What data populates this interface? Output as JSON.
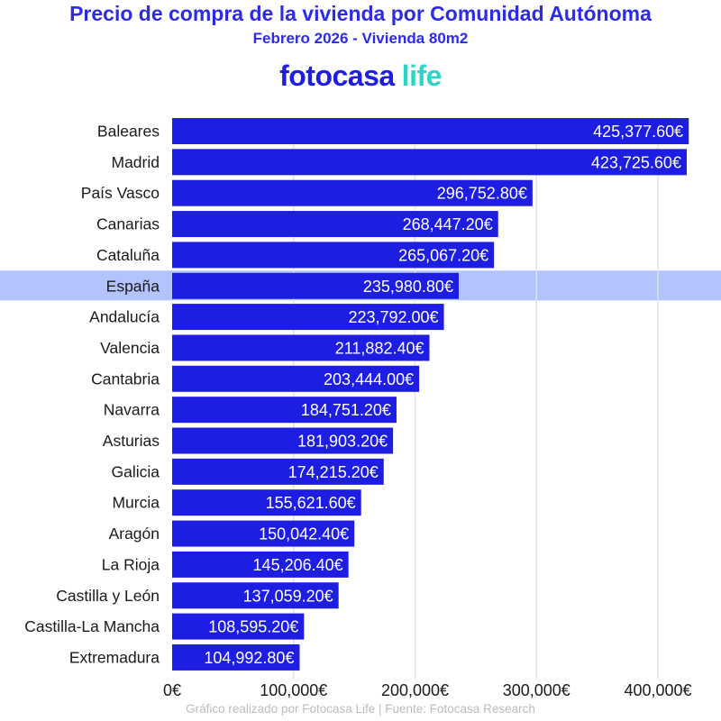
{
  "header": {
    "title": "Precio de compra de la vivienda por Comunidad Autónoma",
    "subtitle": "Febrero 2026 - Vivienda 80m2"
  },
  "logo": {
    "brand": "fotocasa",
    "suffix": "life"
  },
  "footer": "Gráfico realizado por Fotocasa Life | Fuente: Fotocasa Research",
  "colors": {
    "bar": "#1e1ee3",
    "highlight_band": "#b3c3fb",
    "title": "#2c2ce8",
    "logo_accent": "#2fd3c8",
    "grid": "#e3e3e3"
  },
  "chart_data": {
    "type": "bar",
    "orientation": "horizontal",
    "title": "Precio de compra de la vivienda por Comunidad Autónoma",
    "subtitle": "Febrero 2026 - Vivienda 80m2",
    "categories": [
      "Baleares",
      "Madrid",
      "País Vasco",
      "Canarias",
      "Cataluña",
      "España",
      "Andalucía",
      "Valencia",
      "Cantabria",
      "Navarra",
      "Asturias",
      "Galicia",
      "Murcia",
      "Aragón",
      "La Rioja",
      "Castilla y León",
      "Castilla-La Mancha",
      "Extremadura"
    ],
    "values": [
      425377.6,
      423725.6,
      296752.8,
      268447.2,
      265067.2,
      235980.8,
      223792.0,
      211882.4,
      203444.0,
      184751.2,
      181903.2,
      174215.2,
      155621.6,
      150042.4,
      145206.4,
      137059.2,
      108595.2,
      104992.8
    ],
    "value_labels": [
      "425,377.60€",
      "423,725.60€",
      "296,752.80€",
      "268,447.20€",
      "265,067.20€",
      "235,980.80€",
      "223,792.00€",
      "211,882.40€",
      "203,444.00€",
      "184,751.20€",
      "181,903.20€",
      "174,215.20€",
      "155,621.60€",
      "150,042.40€",
      "145,206.40€",
      "137,059.20€",
      "108,595.20€",
      "104,992.80€"
    ],
    "highlighted_category": "España",
    "xlim": [
      0,
      430000
    ],
    "xticks": [
      0,
      100000,
      200000,
      300000,
      400000
    ],
    "xtick_labels": [
      "0€",
      "100,000€",
      "200,000€",
      "300,000€",
      "400,000€"
    ],
    "grid": "vertical",
    "xlabel": "",
    "ylabel": ""
  }
}
